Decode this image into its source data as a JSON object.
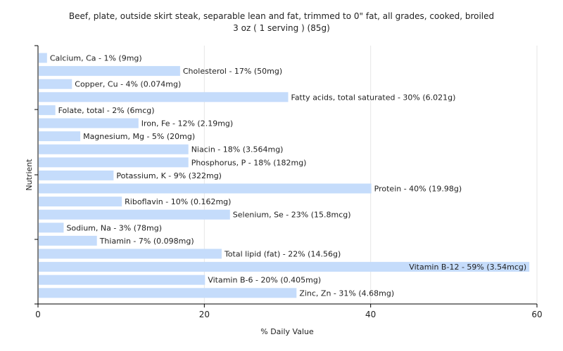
{
  "chart_data": {
    "type": "bar",
    "orientation": "horizontal",
    "title": "Beef, plate, outside skirt steak, separable lean and fat, trimmed to 0\" fat, all grades, cooked, broiled",
    "subtitle": "3 oz ( 1 serving ) (85g)",
    "xlabel": "% Daily Value",
    "ylabel": "Nutrient",
    "xlim": [
      0,
      60
    ],
    "xticks": [
      0,
      20,
      40,
      60
    ],
    "grid": true,
    "bar_color": "#c5dcfb",
    "categories": [
      "Calcium, Ca",
      "Cholesterol",
      "Copper, Cu",
      "Fatty acids, total saturated",
      "Folate, total",
      "Iron, Fe",
      "Magnesium, Mg",
      "Niacin",
      "Phosphorus, P",
      "Potassium, K",
      "Protein",
      "Riboflavin",
      "Selenium, Se",
      "Sodium, Na",
      "Thiamin",
      "Total lipid (fat)",
      "Vitamin B-12",
      "Vitamin B-6",
      "Zinc, Zn"
    ],
    "values": [
      1,
      17,
      4,
      30,
      2,
      12,
      5,
      18,
      18,
      9,
      40,
      10,
      23,
      3,
      7,
      22,
      59,
      20,
      31
    ],
    "labels": [
      "Calcium, Ca - 1% (9mg)",
      "Cholesterol - 17% (50mg)",
      "Copper, Cu - 4% (0.074mg)",
      "Fatty acids, total saturated - 30% (6.021g)",
      "Folate, total - 2% (6mcg)",
      "Iron, Fe - 12% (2.19mg)",
      "Magnesium, Mg - 5% (20mg)",
      "Niacin - 18% (3.564mg)",
      "Phosphorus, P - 18% (182mg)",
      "Potassium, K - 9% (322mg)",
      "Protein - 40% (19.98g)",
      "Riboflavin - 10% (0.162mg)",
      "Selenium, Se - 23% (15.8mcg)",
      "Sodium, Na - 3% (78mg)",
      "Thiamin - 7% (0.098mg)",
      "Total lipid (fat) - 22% (14.56g)",
      "Vitamin B-12 - 59% (3.54mcg)",
      "Vitamin B-6 - 20% (0.405mg)",
      "Zinc, Zn - 31% (4.68mg)"
    ]
  }
}
